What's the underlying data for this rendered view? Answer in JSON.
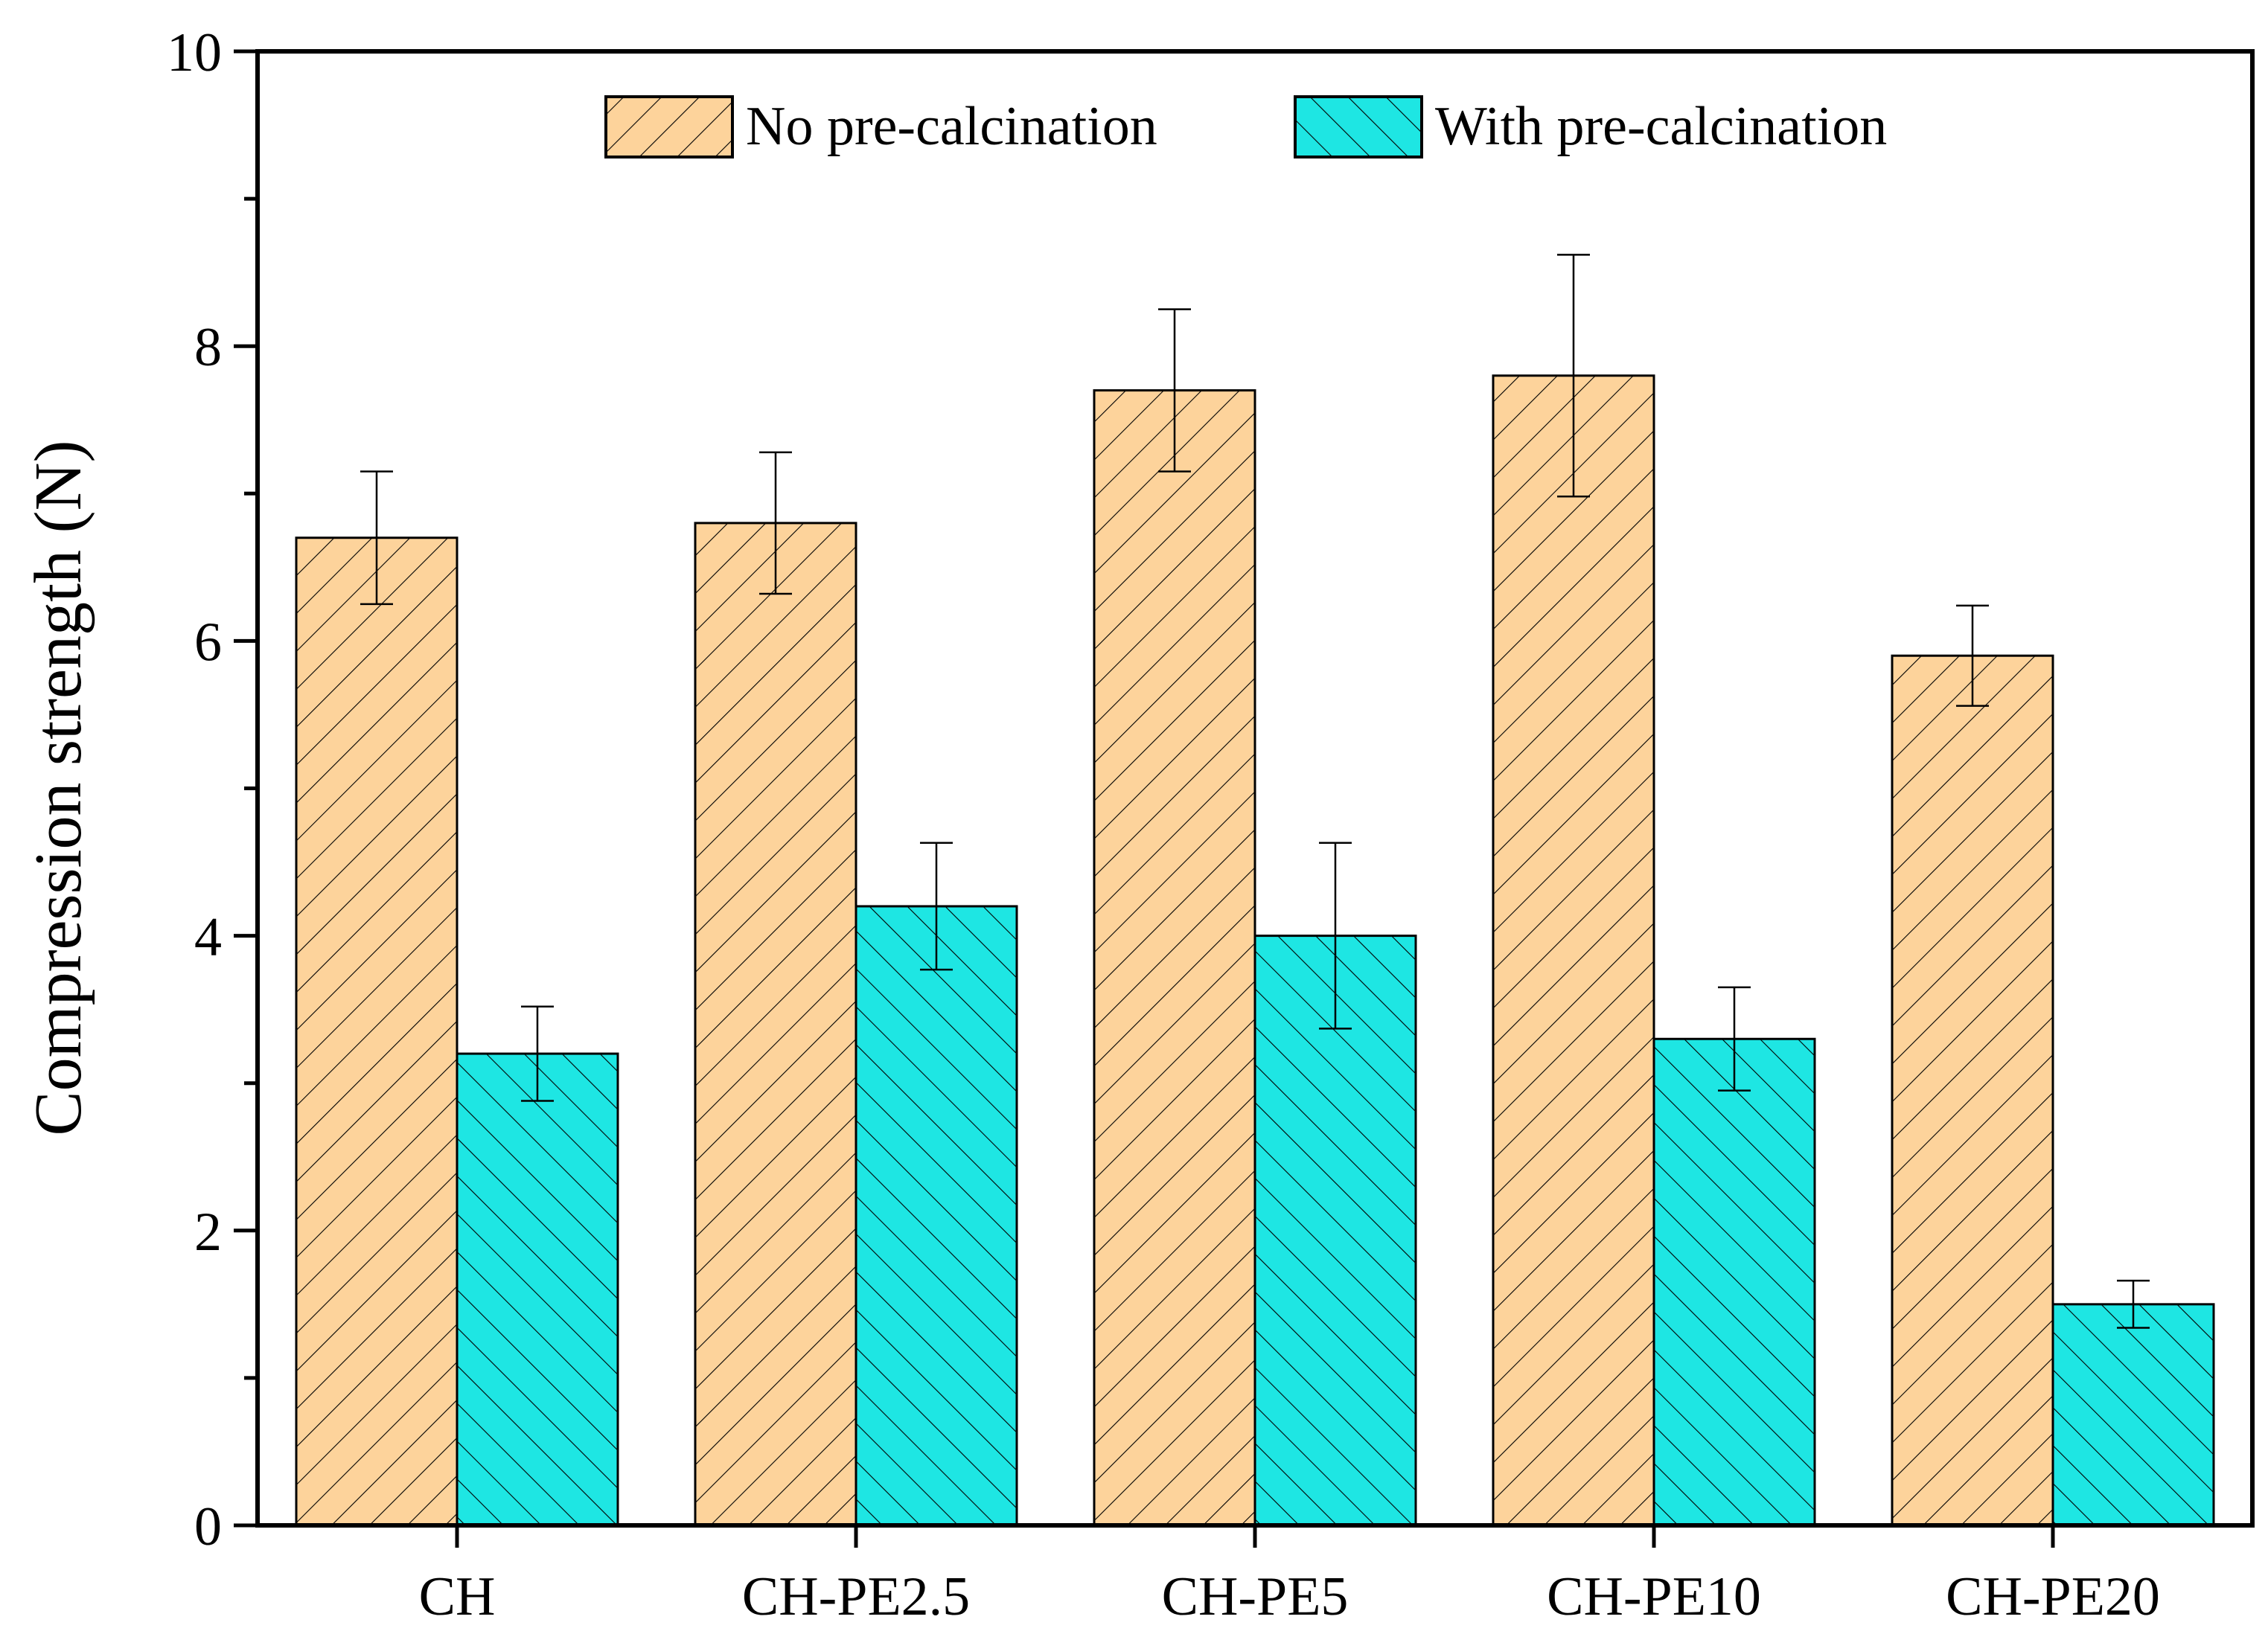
{
  "chart_data": {
    "type": "bar",
    "title": "",
    "xlabel": "",
    "ylabel": "Compression strength (N)",
    "ylim": [
      0,
      10
    ],
    "y_major_ticks": [
      0,
      2,
      4,
      6,
      8,
      10
    ],
    "y_tick_labels": [
      "0",
      "2",
      "4",
      "6",
      "8",
      "10"
    ],
    "categories": [
      "CH",
      "CH-PE2.5",
      "CH-PE5",
      "CH-PE10",
      "CH-PE20"
    ],
    "series": [
      {
        "name": "No pre-calcination",
        "values": [
          6.7,
          6.8,
          7.7,
          7.8,
          5.9
        ],
        "errors": [
          0.45,
          0.48,
          0.55,
          0.82,
          0.34
        ],
        "fill": "#fdd39b",
        "hatch": "forward-diagonal"
      },
      {
        "name": "With pre-calcination",
        "values": [
          3.2,
          4.2,
          4.0,
          3.3,
          1.5
        ],
        "errors": [
          0.32,
          0.43,
          0.63,
          0.35,
          0.16
        ],
        "fill": "#1ee6e3",
        "hatch": "backward-diagonal"
      }
    ],
    "legend": {
      "position": "top-center",
      "orientation": "horizontal"
    },
    "grid": false
  }
}
